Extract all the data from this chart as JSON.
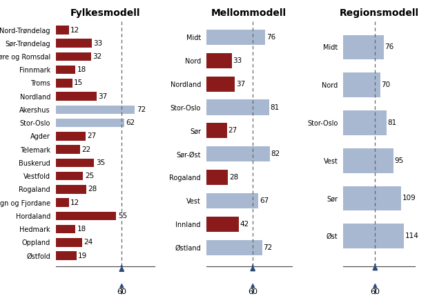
{
  "panel1": {
    "title": "Fylkesmodell",
    "categories": [
      "Nord-Trøndelag",
      "Sør-Trøndelag",
      "Møre og Romsdal",
      "Finnmark",
      "Troms",
      "Nordland",
      "Akershus",
      "Stor-Oslo",
      "Agder",
      "Telemark",
      "Buskerud",
      "Vestfold",
      "Rogaland",
      "Sogn og Fjordane",
      "Hordaland",
      "Hedmark",
      "Oppland",
      "Østfold"
    ],
    "values": [
      12,
      33,
      32,
      18,
      15,
      37,
      72,
      62,
      27,
      22,
      35,
      25,
      28,
      12,
      55,
      18,
      24,
      19
    ],
    "colors": [
      "#8B1A1A",
      "#8B1A1A",
      "#8B1A1A",
      "#8B1A1A",
      "#8B1A1A",
      "#8B1A1A",
      "#A8B8D0",
      "#A8B8D0",
      "#8B1A1A",
      "#8B1A1A",
      "#8B1A1A",
      "#8B1A1A",
      "#8B1A1A",
      "#8B1A1A",
      "#8B1A1A",
      "#8B1A1A",
      "#8B1A1A",
      "#8B1A1A"
    ],
    "xlim": [
      0,
      90
    ],
    "ref_line": 60
  },
  "panel2": {
    "title": "Mellommodell",
    "categories": [
      "Midt",
      "Nord",
      "Nordland",
      "Stor-Oslo",
      "Sør",
      "Sør-Øst",
      "Rogaland",
      "Vest",
      "Innland",
      "Østland"
    ],
    "values": [
      76,
      33,
      37,
      81,
      27,
      82,
      28,
      67,
      42,
      72
    ],
    "colors": [
      "#A8B8D0",
      "#8B1A1A",
      "#8B1A1A",
      "#A8B8D0",
      "#8B1A1A",
      "#A8B8D0",
      "#8B1A1A",
      "#A8B8D0",
      "#8B1A1A",
      "#A8B8D0"
    ],
    "xlim": [
      0,
      110
    ],
    "ref_line": 60
  },
  "panel3": {
    "title": "Regionsmodell",
    "categories": [
      "Midt",
      "Nord",
      "Stor-Oslo",
      "Vest",
      "Sør",
      "Øst"
    ],
    "values": [
      76,
      70,
      81,
      95,
      109,
      114
    ],
    "colors": [
      "#A8B8D0",
      "#A8B8D0",
      "#A8B8D0",
      "#A8B8D0",
      "#A8B8D0",
      "#A8B8D0"
    ],
    "xlim": [
      0,
      135
    ],
    "ref_line": 60
  },
  "dark_red": "#8B1A1A",
  "light_blue": "#A8B8D0",
  "bg_color": "#FFFFFF",
  "ref_color": "#666666",
  "arrow_color": "#2B4A7A",
  "tick_label_size": 7.0,
  "bar_label_size": 7.5,
  "title_size": 10
}
